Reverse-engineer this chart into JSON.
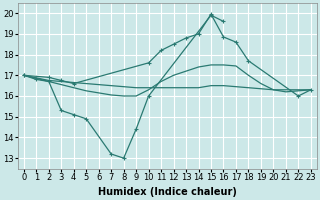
{
  "xlabel": "Humidex (Indice chaleur)",
  "xlim": [
    -0.5,
    23.5
  ],
  "ylim": [
    12.5,
    20.5
  ],
  "yticks": [
    13,
    14,
    15,
    16,
    17,
    18,
    19,
    20
  ],
  "xticks": [
    0,
    1,
    2,
    3,
    4,
    5,
    6,
    7,
    8,
    9,
    10,
    11,
    12,
    13,
    14,
    15,
    16,
    17,
    18,
    19,
    20,
    21,
    22,
    23
  ],
  "background_color": "#cce8e8",
  "grid_color": "#ffffff",
  "line_color": "#2a7a72",
  "lines": [
    {
      "x": [
        0,
        1,
        2,
        3,
        4,
        5,
        7,
        8,
        9,
        10,
        15,
        16
      ],
      "y": [
        17.0,
        16.8,
        16.7,
        15.3,
        15.1,
        14.9,
        13.2,
        13.0,
        14.4,
        16.0,
        19.9,
        19.6
      ],
      "marker": "+"
    },
    {
      "x": [
        0,
        2,
        3,
        4,
        5,
        6,
        7,
        8,
        9,
        10,
        11,
        12,
        13,
        14,
        15,
        16,
        17,
        18,
        19,
        20,
        21,
        23
      ],
      "y": [
        17.0,
        16.75,
        16.7,
        16.65,
        16.6,
        16.55,
        16.5,
        16.45,
        16.4,
        16.4,
        16.4,
        16.4,
        16.4,
        16.4,
        16.5,
        16.5,
        16.45,
        16.4,
        16.35,
        16.3,
        16.3,
        16.3
      ],
      "marker": null
    },
    {
      "x": [
        0,
        2,
        3,
        4,
        5,
        6,
        7,
        8,
        9,
        10,
        11,
        12,
        13,
        14,
        15,
        16,
        17,
        18,
        19,
        20,
        21,
        23
      ],
      "y": [
        17.0,
        16.7,
        16.55,
        16.4,
        16.25,
        16.15,
        16.05,
        16.0,
        16.0,
        16.3,
        16.7,
        17.0,
        17.2,
        17.4,
        17.5,
        17.5,
        17.45,
        17.0,
        16.6,
        16.3,
        16.2,
        16.3
      ],
      "marker": null
    },
    {
      "x": [
        0,
        2,
        3,
        4,
        10,
        11,
        12,
        13,
        14,
        15,
        16,
        17,
        18,
        22,
        23
      ],
      "y": [
        17.0,
        16.9,
        16.75,
        16.6,
        17.6,
        18.2,
        18.5,
        18.8,
        19.0,
        19.95,
        18.85,
        18.6,
        17.7,
        16.0,
        16.3
      ],
      "marker": "+"
    }
  ],
  "axis_fontsize": 7,
  "tick_fontsize": 6
}
